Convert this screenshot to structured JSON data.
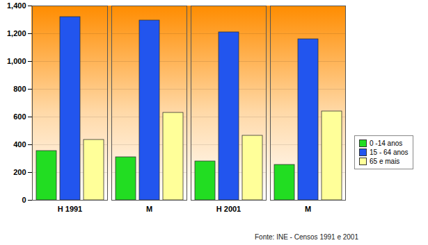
{
  "chart_data": {
    "type": "bar",
    "categories": [
      "H 1991",
      "M",
      "H 2001",
      "M"
    ],
    "series": [
      {
        "name": "0 -14 anos",
        "color": "#22dd22",
        "values": [
          355,
          310,
          280,
          255
        ]
      },
      {
        "name": "15 - 64 anos",
        "color": "#2255ee",
        "values": [
          1320,
          1295,
          1210,
          1160
        ]
      },
      {
        "name": "65 e mais",
        "color": "#ffff99",
        "values": [
          435,
          630,
          465,
          640
        ]
      }
    ],
    "ylim": [
      0,
      1400
    ],
    "yticks": [
      0,
      200,
      400,
      600,
      800,
      1000,
      1200,
      1400
    ],
    "grid": true,
    "legend": "right",
    "caption": "Fonte: INE - Censos 1991 e 2001"
  }
}
